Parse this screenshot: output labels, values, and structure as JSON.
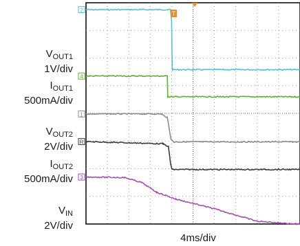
{
  "chart_data": {
    "type": "line",
    "title": "",
    "xlabel": "4ms/div",
    "ylabel": "",
    "divisions": {
      "x": 10,
      "y": 8
    },
    "xlim": [
      0,
      10
    ],
    "ylim": [
      0,
      8
    ],
    "grid": true,
    "trigger_marker": "T",
    "trigger_x_div": 4.1,
    "series": [
      {
        "id": "vout1",
        "scale_label": {
          "main": "V",
          "sub": "OUT1",
          "scale": "1V/div"
        },
        "channel": "2",
        "color": "#4fc4d8",
        "points": [
          [
            0,
            7.75
          ],
          [
            3.95,
            7.75
          ],
          [
            4.0,
            7.3
          ],
          [
            4.03,
            5.6
          ],
          [
            4.05,
            5.58
          ],
          [
            10,
            5.58
          ]
        ]
      },
      {
        "id": "iout1",
        "scale_label": {
          "main": "I",
          "sub": "OUT1",
          "scale": "500mA/div"
        },
        "channel": "4",
        "color": "#56b42a",
        "points": [
          [
            0,
            5.35
          ],
          [
            3.8,
            5.35
          ],
          [
            3.82,
            4.6
          ],
          [
            4.2,
            4.6
          ],
          [
            10,
            4.6
          ]
        ]
      },
      {
        "id": "vout2",
        "scale_label": {
          "main": "V",
          "sub": "OUT2",
          "scale": "2V/div"
        },
        "channel": "1",
        "color": "#8c8c8c",
        "points": [
          [
            0,
            3.98
          ],
          [
            3.5,
            3.98
          ],
          [
            3.8,
            3.85
          ],
          [
            3.92,
            3.3
          ],
          [
            3.98,
            3.05
          ],
          [
            4.1,
            2.97
          ],
          [
            10,
            2.97
          ]
        ]
      },
      {
        "id": "iout2",
        "scale_label": {
          "main": "I",
          "sub": "OUT2",
          "scale": "500mA/div"
        },
        "channel": "R",
        "color": "#3a3a3a",
        "points": [
          [
            0,
            2.98
          ],
          [
            3.6,
            2.9
          ],
          [
            3.85,
            2.8
          ],
          [
            3.95,
            2.2
          ],
          [
            4.02,
            1.97
          ],
          [
            10,
            1.97
          ]
        ]
      },
      {
        "id": "vin",
        "scale_label": {
          "main": "V",
          "sub": "IN",
          "scale": "2V/div"
        },
        "channel": "3",
        "color": "#a64db7",
        "points": [
          [
            0,
            1.7
          ],
          [
            1.8,
            1.68
          ],
          [
            2.6,
            1.5
          ],
          [
            3.3,
            1.15
          ],
          [
            4.2,
            0.9
          ],
          [
            6.0,
            0.55
          ],
          [
            8.0,
            0.1
          ],
          [
            9.8,
            0.0
          ],
          [
            10,
            0.0
          ]
        ]
      }
    ]
  }
}
